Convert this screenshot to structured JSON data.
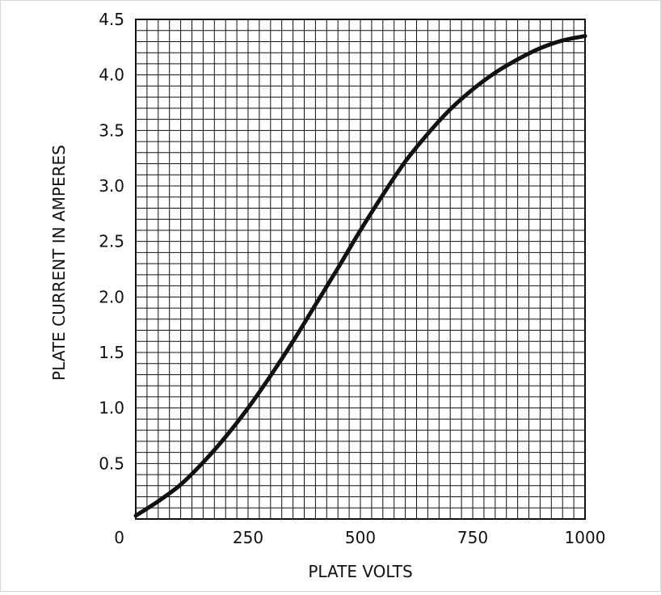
{
  "chart_data": {
    "type": "line",
    "title": "",
    "xlabel": "PLATE VOLTS",
    "ylabel": "PLATE CURRENT IN AMPERES",
    "xlim": [
      0,
      1000
    ],
    "ylim": [
      0,
      4.5
    ],
    "x_ticks": [
      {
        "value": 0,
        "label": "0"
      },
      {
        "value": 250,
        "label": "250"
      },
      {
        "value": 500,
        "label": "500"
      },
      {
        "value": 750,
        "label": "750"
      },
      {
        "value": 1000,
        "label": "1000"
      }
    ],
    "y_ticks": [
      {
        "value": 0.5,
        "label": "0.5"
      },
      {
        "value": 1.0,
        "label": "1.0"
      },
      {
        "value": 1.5,
        "label": "1.5"
      },
      {
        "value": 2.0,
        "label": "2.0"
      },
      {
        "value": 2.5,
        "label": "2.5"
      },
      {
        "value": 3.0,
        "label": "3.0"
      },
      {
        "value": 3.5,
        "label": "3.5"
      },
      {
        "value": 4.0,
        "label": "4.0"
      },
      {
        "value": 4.5,
        "label": "4.5"
      }
    ],
    "grid": true,
    "grid_minor_x_step": 25,
    "grid_minor_y_step": 0.1,
    "legend": "none",
    "series": [
      {
        "color": "#111111",
        "x": [
          0,
          50,
          100,
          150,
          200,
          250,
          300,
          350,
          400,
          450,
          500,
          550,
          600,
          650,
          700,
          750,
          800,
          850,
          900,
          950,
          1000
        ],
        "y": [
          0.03,
          0.16,
          0.31,
          0.51,
          0.74,
          1.0,
          1.29,
          1.6,
          1.93,
          2.26,
          2.6,
          2.92,
          3.22,
          3.47,
          3.69,
          3.87,
          4.02,
          4.14,
          4.24,
          4.31,
          4.35
        ]
      }
    ]
  }
}
